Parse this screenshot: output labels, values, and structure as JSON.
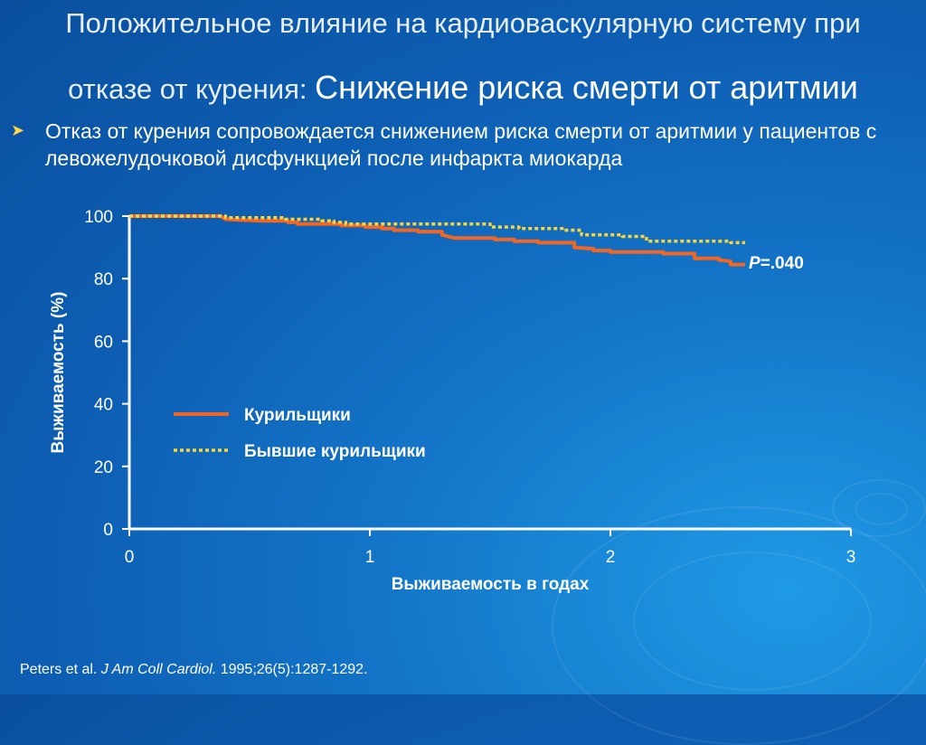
{
  "slide": {
    "title_prefix": "Положительное влияние на кардиоваскулярную систему при",
    "title_prefix2": "отказе от курения:",
    "title_emphasis": "Снижение риска смерти от аритмии",
    "bullet_icon": "arrow-bullet-icon",
    "bullet_text": "Отказ от курения сопровождается снижением риска смерти от аритмии у пациентов с левожелудочковой дисфункцией после инфаркта миокарда",
    "reference": {
      "authors": "Peters et al.",
      "journal": "J Am Coll Cardiol.",
      "details": "1995;26(5):1287-1292."
    }
  },
  "colors": {
    "smokers": "#f26522",
    "former_smokers": "#f7d53a",
    "axis": "#ffffff"
  },
  "chart_data": {
    "type": "line",
    "xlabel": "Выживаемость в годах",
    "ylabel": "Выживаемость  (%)",
    "xlim": [
      0,
      3
    ],
    "ylim": [
      0,
      100
    ],
    "xticks": [
      "0",
      "1",
      "2",
      "3"
    ],
    "yticks": [
      "0",
      "20",
      "40",
      "60",
      "80",
      "100"
    ],
    "annotation_p": "P",
    "annotation_rest": "=.040",
    "series": [
      {
        "name": "Курильщики",
        "style": "solid",
        "points": [
          [
            0,
            100
          ],
          [
            0.38,
            100
          ],
          [
            0.4,
            99
          ],
          [
            0.55,
            98.5
          ],
          [
            0.66,
            98.5
          ],
          [
            0.66,
            98
          ],
          [
            0.7,
            98
          ],
          [
            0.7,
            97.5
          ],
          [
            0.88,
            97.5
          ],
          [
            0.88,
            97
          ],
          [
            0.98,
            97
          ],
          [
            0.98,
            96.5
          ],
          [
            1.05,
            96.5
          ],
          [
            1.05,
            96
          ],
          [
            1.1,
            96
          ],
          [
            1.1,
            95.5
          ],
          [
            1.2,
            95.5
          ],
          [
            1.2,
            95
          ],
          [
            1.3,
            95
          ],
          [
            1.3,
            94
          ],
          [
            1.35,
            93
          ],
          [
            1.52,
            93
          ],
          [
            1.52,
            92.5
          ],
          [
            1.6,
            92.5
          ],
          [
            1.6,
            92
          ],
          [
            1.7,
            92
          ],
          [
            1.7,
            91.5
          ],
          [
            1.85,
            91.5
          ],
          [
            1.85,
            90
          ],
          [
            1.93,
            89.5
          ],
          [
            1.93,
            89
          ],
          [
            2.0,
            89
          ],
          [
            2.0,
            88.5
          ],
          [
            2.22,
            88.5
          ],
          [
            2.22,
            88
          ],
          [
            2.35,
            88
          ],
          [
            2.35,
            86.5
          ],
          [
            2.45,
            86.5
          ],
          [
            2.45,
            86
          ],
          [
            2.5,
            85.5
          ],
          [
            2.5,
            84.5
          ],
          [
            2.56,
            84.5
          ]
        ]
      },
      {
        "name": "Бывшие курильщики",
        "style": "dotted",
        "points": [
          [
            0,
            100
          ],
          [
            0.4,
            100
          ],
          [
            0.4,
            99.5
          ],
          [
            0.65,
            99.5
          ],
          [
            0.65,
            99
          ],
          [
            0.8,
            99
          ],
          [
            0.8,
            98.5
          ],
          [
            0.85,
            98.5
          ],
          [
            0.85,
            98
          ],
          [
            0.9,
            98
          ],
          [
            0.9,
            97.5
          ],
          [
            1.5,
            97.5
          ],
          [
            1.5,
            96.5
          ],
          [
            1.62,
            96.5
          ],
          [
            1.62,
            96
          ],
          [
            1.8,
            96
          ],
          [
            1.8,
            95.5
          ],
          [
            1.88,
            95.5
          ],
          [
            1.88,
            94
          ],
          [
            2.05,
            94
          ],
          [
            2.05,
            93.5
          ],
          [
            2.15,
            93.5
          ],
          [
            2.15,
            92
          ],
          [
            2.5,
            92
          ],
          [
            2.5,
            91.5
          ],
          [
            2.56,
            91.5
          ]
        ]
      }
    ]
  }
}
